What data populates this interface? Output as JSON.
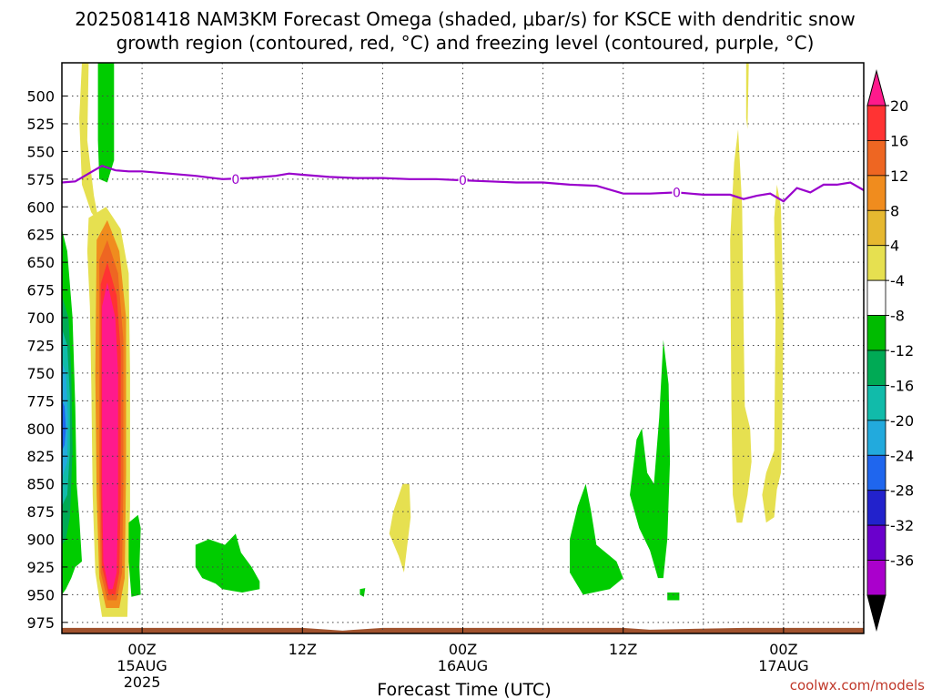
{
  "chart_data": {
    "type": "heatmap",
    "title_line1": "2025081418 NAM3KM Forecast Omega (shaded, μbar/s) for KSCE with dendritic snow",
    "title_line2": "growth region (contoured, red, °C) and freezing level (contoured, purple, °C)",
    "xlabel": "Forecast Time (UTC)",
    "credit": "coolwx.com/models",
    "y_ticks": [
      "500",
      "525",
      "550",
      "575",
      "600",
      "625",
      "650",
      "675",
      "700",
      "725",
      "750",
      "775",
      "800",
      "825",
      "850",
      "875",
      "900",
      "925",
      "950",
      "975"
    ],
    "x_ticks": [
      {
        "label": "00Z",
        "date": "15AUG",
        "year": "2025",
        "hour": 6
      },
      {
        "label": "12Z",
        "hour": 18
      },
      {
        "label": "00Z",
        "date": "16AUG",
        "hour": 30
      },
      {
        "label": "12Z",
        "hour": 42
      },
      {
        "label": "00Z",
        "date": "17AUG",
        "hour": 54
      }
    ],
    "xlim_hours": [
      0,
      60
    ],
    "ylim_mb": [
      470,
      985
    ],
    "colorbar": {
      "labels": [
        "20",
        "16",
        "12",
        "8",
        "4",
        "-4",
        "-8",
        "-12",
        "-16",
        "-20",
        "-24",
        "-28",
        "-32",
        "-36"
      ],
      "colors": [
        "#ff1a8c",
        "#ff3333",
        "#ee6622",
        "#f08c1e",
        "#e6b830",
        "#e6e050",
        "#ffffff",
        "#00bb00",
        "#00aa55",
        "#11bbaa",
        "#22aadd",
        "#1f66ee",
        "#2222cc",
        "#6a00cc",
        "#aa00cc",
        "#aaaaaa"
      ]
    },
    "freezing_level": {
      "label": "0",
      "color": "#9900cc",
      "hours": [
        0,
        1,
        2,
        3,
        4,
        5,
        6,
        8,
        10,
        12,
        14,
        16,
        17,
        18,
        20,
        22,
        24,
        26,
        28,
        30,
        32,
        34,
        36,
        38,
        40,
        42,
        44,
        46,
        48,
        50,
        51,
        52,
        53,
        54,
        55,
        56,
        57,
        58,
        59,
        60
      ],
      "mb": [
        578,
        577,
        570,
        563,
        567,
        568,
        568,
        570,
        572,
        575,
        574,
        572,
        570,
        571,
        573,
        574,
        574,
        575,
        575,
        576,
        577,
        578,
        578,
        580,
        581,
        588,
        588,
        587,
        589,
        589,
        593,
        590,
        588,
        595,
        583,
        587,
        580,
        580,
        578,
        585
      ]
    },
    "omega_regions": [
      {
        "name": "upper-green-column",
        "cat": "-4",
        "pts": [
          [
            2.7,
            470
          ],
          [
            3.9,
            470
          ],
          [
            3.9,
            558
          ],
          [
            3.4,
            578
          ],
          [
            2.8,
            575
          ],
          [
            2.7,
            540
          ]
        ]
      },
      {
        "name": "yellow-upper-column",
        "cat": "4",
        "pts": [
          [
            1.5,
            470
          ],
          [
            2.0,
            470
          ],
          [
            1.9,
            540
          ],
          [
            2.4,
            590
          ],
          [
            2.8,
            615
          ],
          [
            2.2,
            605
          ],
          [
            1.5,
            580
          ],
          [
            1.3,
            520
          ]
        ]
      },
      {
        "name": "yellow-main",
        "cat": "4",
        "pts": [
          [
            2.0,
            610
          ],
          [
            3.3,
            600
          ],
          [
            4.4,
            620
          ],
          [
            5.0,
            660
          ],
          [
            5.1,
            750
          ],
          [
            5.1,
            870
          ],
          [
            5.0,
            930
          ],
          [
            4.9,
            970
          ],
          [
            3.0,
            970
          ],
          [
            2.5,
            930
          ],
          [
            2.3,
            860
          ],
          [
            2.2,
            760
          ],
          [
            2.1,
            690
          ],
          [
            1.9,
            640
          ]
        ]
      },
      {
        "name": "orange-outer",
        "cat": "8",
        "pts": [
          [
            2.6,
            630
          ],
          [
            3.4,
            612
          ],
          [
            4.3,
            640
          ],
          [
            4.8,
            700
          ],
          [
            4.8,
            840
          ],
          [
            4.7,
            935
          ],
          [
            4.3,
            962
          ],
          [
            3.3,
            962
          ],
          [
            2.8,
            935
          ],
          [
            2.6,
            860
          ],
          [
            2.5,
            750
          ]
        ]
      },
      {
        "name": "orange-inner",
        "cat": "12",
        "pts": [
          [
            2.8,
            648
          ],
          [
            3.4,
            630
          ],
          [
            4.2,
            660
          ],
          [
            4.6,
            720
          ],
          [
            4.6,
            850
          ],
          [
            4.5,
            930
          ],
          [
            4.1,
            955
          ],
          [
            3.4,
            955
          ],
          [
            2.9,
            930
          ],
          [
            2.8,
            850
          ]
        ]
      },
      {
        "name": "red-core",
        "cat": "16",
        "pts": [
          [
            2.9,
            670
          ],
          [
            3.4,
            650
          ],
          [
            4.1,
            680
          ],
          [
            4.4,
            730
          ],
          [
            4.4,
            860
          ],
          [
            4.3,
            930
          ],
          [
            4.0,
            950
          ],
          [
            3.5,
            950
          ],
          [
            3.0,
            925
          ],
          [
            2.9,
            850
          ]
        ]
      },
      {
        "name": "magenta-core",
        "cat": "20",
        "pts": [
          [
            3.0,
            690
          ],
          [
            3.4,
            668
          ],
          [
            4.0,
            700
          ],
          [
            4.2,
            750
          ],
          [
            4.2,
            870
          ],
          [
            4.1,
            930
          ],
          [
            3.8,
            945
          ],
          [
            3.5,
            945
          ],
          [
            3.1,
            920
          ],
          [
            3.0,
            850
          ]
        ]
      },
      {
        "name": "left-edge-green",
        "cat": "-4",
        "pts": [
          [
            0,
            620
          ],
          [
            0.4,
            640
          ],
          [
            0.8,
            700
          ],
          [
            1.0,
            780
          ],
          [
            1.1,
            850
          ],
          [
            1.3,
            880
          ],
          [
            1.5,
            920
          ],
          [
            1.0,
            925
          ],
          [
            0.7,
            935
          ],
          [
            0.3,
            945
          ],
          [
            0,
            950
          ]
        ]
      },
      {
        "name": "left-edge-teal",
        "cat": "-8",
        "pts": [
          [
            0,
            680
          ],
          [
            0.5,
            700
          ],
          [
            0.7,
            750
          ],
          [
            0.8,
            820
          ],
          [
            0.6,
            880
          ],
          [
            0.3,
            900
          ],
          [
            0,
            905
          ]
        ]
      },
      {
        "name": "left-edge-cyan",
        "cat": "-12",
        "pts": [
          [
            0,
            710
          ],
          [
            0.4,
            725
          ],
          [
            0.6,
            770
          ],
          [
            0.6,
            820
          ],
          [
            0.4,
            860
          ],
          [
            0,
            870
          ]
        ]
      },
      {
        "name": "left-edge-blue",
        "cat": "-16",
        "pts": [
          [
            0,
            740
          ],
          [
            0.3,
            750
          ],
          [
            0.45,
            790
          ],
          [
            0.4,
            830
          ],
          [
            0,
            845
          ]
        ]
      },
      {
        "name": "left-edge-darkblue",
        "cat": "-20",
        "pts": [
          [
            0,
            775
          ],
          [
            0.2,
            780
          ],
          [
            0.3,
            800
          ],
          [
            0.2,
            815
          ],
          [
            0,
            820
          ]
        ]
      },
      {
        "name": "green-blob-a",
        "cat": "-4",
        "pts": [
          [
            5.0,
            885
          ],
          [
            5.7,
            878
          ],
          [
            5.9,
            890
          ],
          [
            5.8,
            925
          ],
          [
            5.9,
            950
          ],
          [
            5.2,
            952
          ],
          [
            5.0,
            920
          ]
        ]
      },
      {
        "name": "green-blob-b",
        "cat": "-4",
        "pts": [
          [
            10.0,
            905
          ],
          [
            11.0,
            900
          ],
          [
            12.2,
            905
          ],
          [
            13.0,
            895
          ],
          [
            13.4,
            912
          ],
          [
            14.2,
            925
          ],
          [
            14.8,
            938
          ],
          [
            14.8,
            945
          ],
          [
            13.5,
            948
          ],
          [
            12.0,
            945
          ],
          [
            11.5,
            940
          ],
          [
            10.5,
            935
          ],
          [
            10.0,
            925
          ]
        ]
      },
      {
        "name": "yellow-blob-c",
        "cat": "4",
        "pts": [
          [
            24.8,
            875
          ],
          [
            25.5,
            850
          ],
          [
            26.0,
            850
          ],
          [
            26.1,
            880
          ],
          [
            25.8,
            910
          ],
          [
            25.6,
            930
          ],
          [
            25.2,
            915
          ],
          [
            24.5,
            895
          ]
        ]
      },
      {
        "name": "green-speck-d",
        "cat": "-4",
        "pts": [
          [
            22.3,
            945
          ],
          [
            22.7,
            944
          ],
          [
            22.6,
            952
          ],
          [
            22.3,
            950
          ]
        ]
      },
      {
        "name": "green-blob-e",
        "cat": "-4",
        "pts": [
          [
            38.0,
            900
          ],
          [
            38.6,
            870
          ],
          [
            39.2,
            850
          ],
          [
            39.6,
            875
          ],
          [
            40.0,
            905
          ],
          [
            41.5,
            920
          ],
          [
            42.0,
            935
          ],
          [
            41.0,
            945
          ],
          [
            39.0,
            950
          ],
          [
            38.0,
            930
          ]
        ]
      },
      {
        "name": "green-blob-f",
        "cat": "-4",
        "pts": [
          [
            42.5,
            860
          ],
          [
            43.0,
            810
          ],
          [
            43.4,
            800
          ],
          [
            43.8,
            840
          ],
          [
            44.3,
            850
          ],
          [
            44.7,
            790
          ],
          [
            45.0,
            720
          ],
          [
            45.4,
            760
          ],
          [
            45.5,
            830
          ],
          [
            45.3,
            900
          ],
          [
            45.0,
            935
          ],
          [
            44.6,
            935
          ],
          [
            44.0,
            910
          ],
          [
            43.2,
            890
          ]
        ]
      },
      {
        "name": "green-speck-g",
        "cat": "-4",
        "pts": [
          [
            45.3,
            948
          ],
          [
            46.2,
            948
          ],
          [
            46.2,
            955
          ],
          [
            45.3,
            955
          ]
        ]
      },
      {
        "name": "yellow-col-h",
        "cat": "4",
        "pts": [
          [
            50.0,
            630
          ],
          [
            50.3,
            560
          ],
          [
            50.6,
            530
          ],
          [
            50.9,
            600
          ],
          [
            51.0,
            700
          ],
          [
            51.1,
            780
          ],
          [
            51.5,
            800
          ],
          [
            51.6,
            830
          ],
          [
            51.3,
            860
          ],
          [
            50.9,
            885
          ],
          [
            50.5,
            885
          ],
          [
            50.2,
            860
          ],
          [
            50.1,
            780
          ]
        ]
      },
      {
        "name": "yellow-col-i",
        "cat": "4",
        "pts": [
          [
            53.3,
            610
          ],
          [
            53.5,
            580
          ],
          [
            53.8,
            600
          ],
          [
            54.0,
            700
          ],
          [
            53.9,
            800
          ],
          [
            53.8,
            840
          ],
          [
            53.5,
            855
          ],
          [
            53.3,
            880
          ],
          [
            52.7,
            885
          ],
          [
            52.4,
            860
          ],
          [
            52.7,
            840
          ],
          [
            53.3,
            820
          ],
          [
            53.4,
            700
          ]
        ]
      },
      {
        "name": "yellow-top-j",
        "cat": "4",
        "pts": [
          [
            51.2,
            470
          ],
          [
            51.4,
            470
          ],
          [
            51.3,
            530
          ],
          [
            51.2,
            520
          ]
        ]
      }
    ],
    "ground": {
      "color": "#a0522d",
      "top_mb": 975
    }
  }
}
